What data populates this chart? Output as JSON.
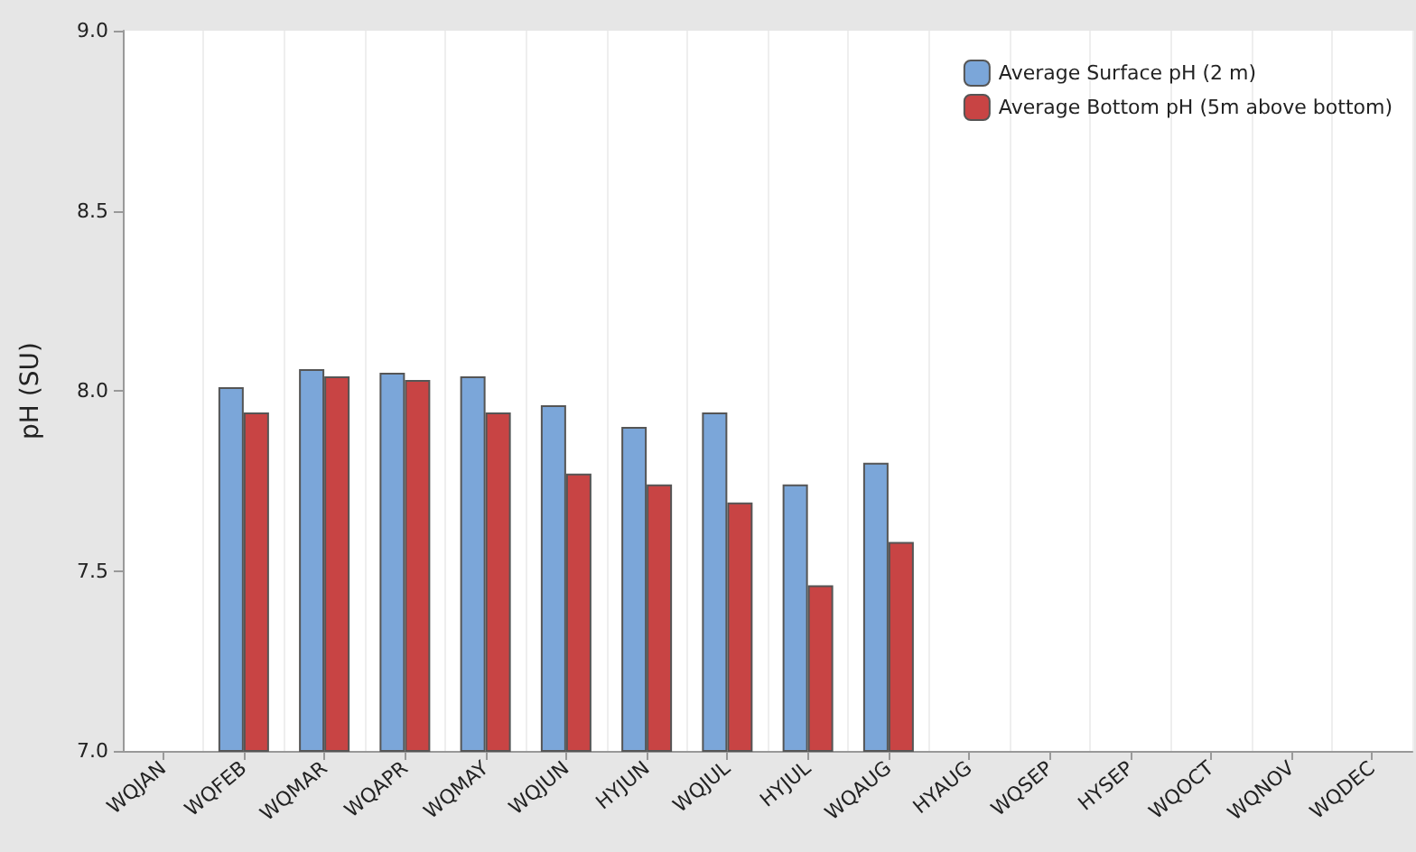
{
  "chart_data": {
    "type": "bar",
    "ylabel": "pH (SU)",
    "categories": [
      "WQJAN",
      "WQFEB",
      "WQMAR",
      "WQAPR",
      "WQMAY",
      "WQJUN",
      "HYJUN",
      "WQJUL",
      "HYJUL",
      "WQAUG",
      "HYAUG",
      "WQSEP",
      "HYSEP",
      "WQOCT",
      "WQNOV",
      "WQDEC"
    ],
    "series": [
      {
        "name": "Average Surface pH (2 m)",
        "color": "#7ba6d9",
        "values": [
          null,
          8.01,
          8.06,
          8.05,
          8.04,
          7.96,
          7.9,
          7.94,
          7.74,
          7.8,
          null,
          null,
          null,
          null,
          null,
          null
        ]
      },
      {
        "name": "Average Bottom pH (5m above bottom)",
        "color": "#c84444",
        "values": [
          null,
          7.94,
          8.04,
          8.03,
          7.94,
          7.77,
          7.74,
          7.69,
          7.46,
          7.58,
          null,
          null,
          null,
          null,
          null,
          null
        ]
      }
    ],
    "ylim": [
      7,
      9
    ],
    "yticks": [
      {
        "value": 7,
        "label": "7.0"
      },
      {
        "value": 7.5,
        "label": "7.5"
      },
      {
        "value": 8,
        "label": "8.0"
      },
      {
        "value": 8.5,
        "label": "8.5"
      },
      {
        "value": 9,
        "label": "9.0"
      }
    ],
    "grid": "x",
    "legend": "top right"
  }
}
